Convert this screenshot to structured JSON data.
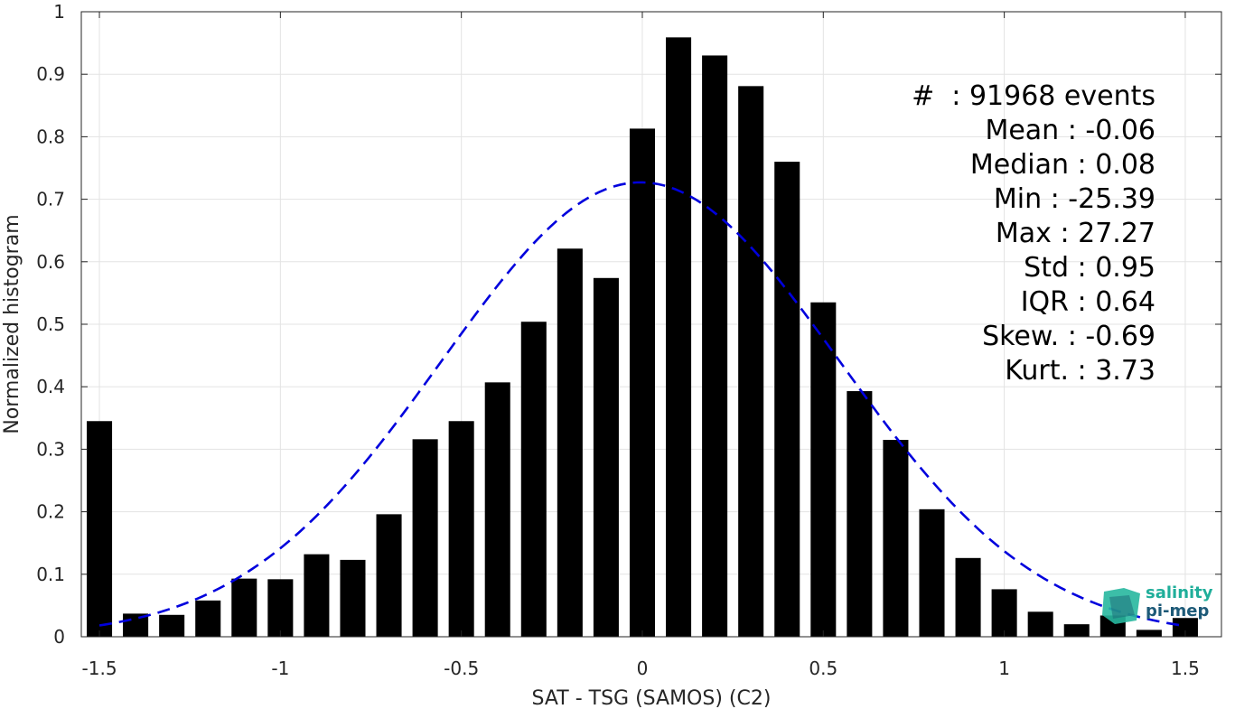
{
  "chart_data": {
    "type": "bar",
    "xlabel": "SAT - TSG (SAMOS) (C2)",
    "ylabel": "Normalized histogram",
    "xlim": [
      -1.55,
      1.6
    ],
    "ylim": [
      0,
      1
    ],
    "grid": true,
    "x_ticks": [
      "-1.5",
      "-1",
      "-0.5",
      "0",
      "0.5",
      "1",
      "1.5"
    ],
    "x_tick_values": [
      -1.5,
      -1,
      -0.5,
      0,
      0.5,
      1,
      1.5
    ],
    "y_ticks": [
      "0",
      "0.1",
      "0.2",
      "0.3",
      "0.4",
      "0.5",
      "0.6",
      "0.7",
      "0.8",
      "0.9",
      "1"
    ],
    "y_tick_values": [
      0,
      0.1,
      0.2,
      0.3,
      0.4,
      0.5,
      0.6,
      0.7,
      0.8,
      0.9,
      1
    ],
    "bar_color": "#000000",
    "curve_color": "#0000dd",
    "bins": [
      -1.5,
      -1.4,
      -1.3,
      -1.2,
      -1.1,
      -1.0,
      -0.9,
      -0.8,
      -0.7,
      -0.6,
      -0.5,
      -0.4,
      -0.3,
      -0.2,
      -0.1,
      0.0,
      0.1,
      0.2,
      0.3,
      0.4,
      0.5,
      0.6,
      0.7,
      0.8,
      0.9,
      1.0,
      1.1,
      1.2,
      1.3,
      1.4,
      1.5
    ],
    "values": [
      0.345,
      0.037,
      0.035,
      0.058,
      0.093,
      0.092,
      0.132,
      0.123,
      0.196,
      0.316,
      0.345,
      0.407,
      0.504,
      0.621,
      0.574,
      0.813,
      0.959,
      0.93,
      0.881,
      0.76,
      0.535,
      0.393,
      0.315,
      0.204,
      0.126,
      0.076,
      0.04,
      0.02,
      0.034,
      0.011,
      0.03
    ],
    "normal_fit": {
      "mean": -0.005,
      "std": 0.55,
      "peak": 0.727,
      "x_range": [
        -1.5,
        1.5
      ]
    }
  },
  "stats": {
    "events": "#  : 91968 events",
    "mean": "Mean : -0.06",
    "median": "Median : 0.08",
    "min": "Min : -25.39",
    "max": "Max : 27.27",
    "std": "Std : 0.95",
    "iqr": "IQR : 0.64",
    "skew": "Skew. : -0.69",
    "kurt": "Kurt. : 3.73"
  },
  "logo": {
    "line1": "salinity",
    "line2": "pi-mep"
  }
}
